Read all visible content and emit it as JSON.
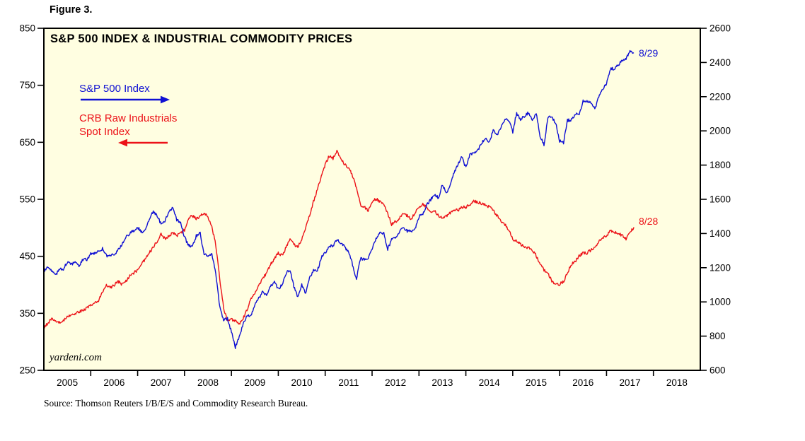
{
  "figure_label": "Figure 3.",
  "watermark": "yardeni.com",
  "source": "Source: Thomson Reuters I/B/E/S and Commodity Research Bureau.",
  "legend": {
    "sp500": "S&P 500 Index",
    "crb_line1": "CRB Raw Industrials",
    "crb_line2": "Spot Index"
  },
  "colors": {
    "sp500_blue": "#0f10d3",
    "crb_red": "#ec1218",
    "plot_bg": "#fffee1",
    "frame": "#000000"
  },
  "chart_data": {
    "type": "line",
    "title": "S&P 500 INDEX & INDUSTRIAL COMMODITY PRICES",
    "x_range": [
      2005,
      2019
    ],
    "x_labels": [
      "2005",
      "2006",
      "2007",
      "2008",
      "2009",
      "2010",
      "2011",
      "2012",
      "2013",
      "2014",
      "2015",
      "2016",
      "2017",
      "2018"
    ],
    "x_tick_years": [
      2006,
      2007,
      2008,
      2009,
      2010,
      2011,
      2012,
      2013,
      2014,
      2015,
      2016,
      2017,
      2018
    ],
    "left_axis": {
      "label": "CRB Raw Industrials Spot Index",
      "range": [
        250,
        850
      ],
      "ticks": [
        250,
        350,
        450,
        550,
        650,
        750,
        850
      ]
    },
    "right_axis": {
      "label": "S&P 500 Index",
      "range": [
        600,
        2600
      ],
      "ticks": [
        600,
        800,
        1000,
        1200,
        1400,
        1600,
        1800,
        2000,
        2200,
        2400,
        2600
      ]
    },
    "grid": false,
    "legend_position": "top-left-inside",
    "series": [
      {
        "name": "S&P 500 Index",
        "axis": "right",
        "color": "#0f10d3",
        "end_label": "8/29",
        "end_value": 2456,
        "x_start": 2005.0,
        "x_step_months": 1,
        "values": [
          1181,
          1204,
          1181,
          1157,
          1192,
          1191,
          1234,
          1220,
          1229,
          1207,
          1249,
          1248,
          1280,
          1281,
          1295,
          1311,
          1270,
          1270,
          1277,
          1304,
          1336,
          1378,
          1401,
          1418,
          1438,
          1407,
          1421,
          1482,
          1531,
          1503,
          1455,
          1474,
          1527,
          1549,
          1481,
          1468,
          1379,
          1331,
          1323,
          1386,
          1400,
          1280,
          1267,
          1283,
          1166,
          969,
          896,
          903,
          826,
          735,
          798,
          873,
          919,
          919,
          987,
          1021,
          1057,
          1036,
          1096,
          1115,
          1074,
          1104,
          1169,
          1187,
          1089,
          1031,
          1102,
          1049,
          1141,
          1183,
          1181,
          1258,
          1286,
          1327,
          1326,
          1364,
          1345,
          1321,
          1292,
          1219,
          1131,
          1253,
          1247,
          1258,
          1312,
          1366,
          1408,
          1398,
          1310,
          1362,
          1379,
          1407,
          1441,
          1412,
          1416,
          1426,
          1498,
          1515,
          1569,
          1598,
          1631,
          1606,
          1686,
          1633,
          1682,
          1757,
          1806,
          1848,
          1783,
          1859,
          1872,
          1884,
          1924,
          1960,
          1931,
          2003,
          1972,
          2018,
          2068,
          2059,
          1995,
          2105,
          2068,
          2086,
          2107,
          2063,
          2104,
          1972,
          1920,
          2079,
          2080,
          2044,
          1940,
          1932,
          2060,
          2065,
          2097,
          2099,
          2174,
          2171,
          2168,
          2126,
          2199,
          2239,
          2279,
          2364,
          2363,
          2384,
          2412,
          2423,
          2470,
          2456
        ]
      },
      {
        "name": "CRB Raw Industrials Spot Index",
        "axis": "left",
        "color": "#ec1218",
        "end_label": "8/28",
        "end_value": 501,
        "x_start": 2005.0,
        "x_step_months": 1,
        "values": [
          325,
          332,
          340,
          338,
          333,
          338,
          344,
          348,
          350,
          352,
          355,
          360,
          365,
          368,
          373,
          386,
          400,
          394,
          400,
          406,
          401,
          406,
          415,
          421,
          426,
          436,
          446,
          456,
          466,
          476,
          490,
          481,
          486,
          491,
          486,
          491,
          496,
          516,
          521,
          516,
          521,
          526,
          520,
          501,
          470,
          410,
          360,
          336,
          340,
          336,
          331,
          341,
          356,
          376,
          386,
          401,
          411,
          421,
          436,
          446,
          456,
          451,
          466,
          481,
          471,
          466,
          481,
          501,
          521,
          546,
          566,
          591,
          611,
          626,
          621,
          636,
          621,
          611,
          606,
          591,
          571,
          541,
          536,
          531,
          546,
          551,
          546,
          541,
          526,
          506,
          511,
          516,
          526,
          521,
          516,
          526,
          536,
          541,
          536,
          526,
          531,
          521,
          516,
          521,
          526,
          531,
          531,
          536,
          536,
          541,
          546,
          546,
          541,
          541,
          536,
          531,
          521,
          511,
          506,
          496,
          481,
          476,
          471,
          466,
          466,
          461,
          451,
          436,
          426,
          421,
          406,
          401,
          401,
          406,
          421,
          436,
          441,
          451,
          456,
          456,
          461,
          466,
          476,
          481,
          486,
          496,
          491,
          491,
          486,
          481,
          491,
          501
        ]
      }
    ]
  }
}
